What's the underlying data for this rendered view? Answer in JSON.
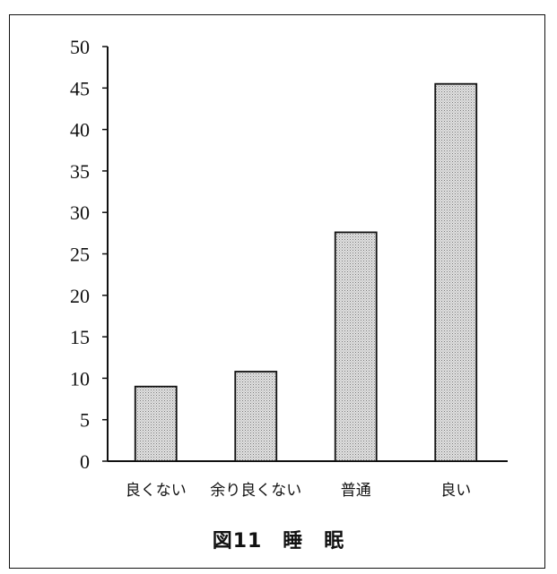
{
  "chart_data": {
    "type": "bar",
    "title": "図11　睡　眠",
    "categories": [
      "良くない",
      "余り良くない",
      "普通",
      "良い"
    ],
    "values": [
      9,
      10.8,
      27.6,
      45.5
    ],
    "ylim": [
      0,
      50
    ],
    "yticks": [
      0,
      5,
      10,
      15,
      20,
      25,
      30,
      35,
      40,
      45,
      50
    ],
    "xlabel": "",
    "ylabel": "",
    "grid": false,
    "bar_fill": "#c8c8c8",
    "bar_stroke": "#111111"
  }
}
